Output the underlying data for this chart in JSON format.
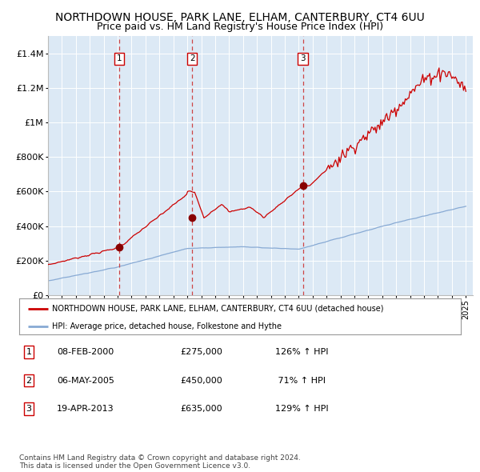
{
  "title": "NORTHDOWN HOUSE, PARK LANE, ELHAM, CANTERBURY, CT4 6UU",
  "subtitle": "Price paid vs. HM Land Registry's House Price Index (HPI)",
  "title_fontsize": 10,
  "subtitle_fontsize": 9,
  "bg_color": "#dce9f5",
  "line_color_red": "#cc0000",
  "line_color_blue": "#88aad4",
  "marker_color": "#880000",
  "dashed_color": "#cc3333",
  "grid_color": "#ffffff",
  "ylim": [
    0,
    1500000
  ],
  "yticks": [
    0,
    200000,
    400000,
    600000,
    800000,
    1000000,
    1200000,
    1400000
  ],
  "ytick_labels": [
    "£0",
    "£200K",
    "£400K",
    "£600K",
    "£800K",
    "£1M",
    "£1.2M",
    "£1.4M"
  ],
  "sale_dates": [
    2000.1,
    2005.35,
    2013.3
  ],
  "sale_prices": [
    275000,
    450000,
    635000
  ],
  "sale_labels": [
    "1",
    "2",
    "3"
  ],
  "legend_label_red": "NORTHDOWN HOUSE, PARK LANE, ELHAM, CANTERBURY, CT4 6UU (detached house)",
  "legend_label_blue": "HPI: Average price, detached house, Folkestone and Hythe",
  "table_data": [
    [
      "1",
      "08-FEB-2000",
      "£275,000",
      "126% ↑ HPI"
    ],
    [
      "2",
      "06-MAY-2005",
      "£450,000",
      " 71% ↑ HPI"
    ],
    [
      "3",
      "19-APR-2013",
      "£635,000",
      "129% ↑ HPI"
    ]
  ],
  "footer_text": "Contains HM Land Registry data © Crown copyright and database right 2024.\nThis data is licensed under the Open Government Licence v3.0.",
  "outer_bg": "#ffffff"
}
